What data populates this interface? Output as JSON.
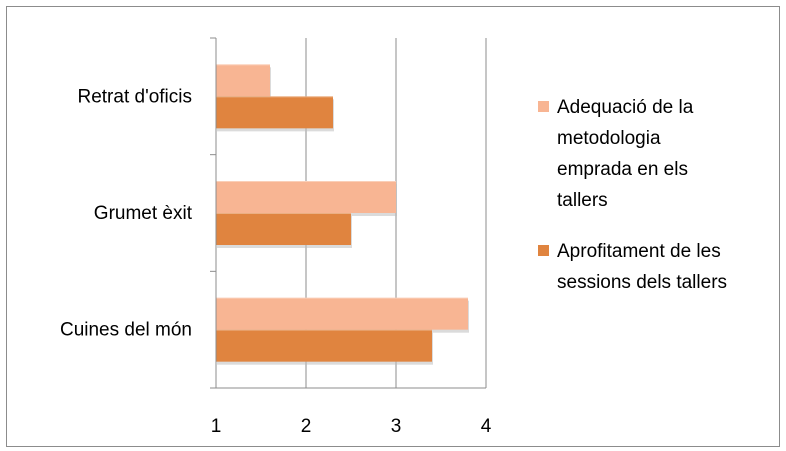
{
  "chart_data": {
    "type": "bar",
    "orientation": "horizontal",
    "categories": [
      "Retrat d'oficis",
      "Grumet èxit",
      "Cuines del món"
    ],
    "series": [
      {
        "name": "Adequació de la metodologia emprada en els tallers",
        "name_lines": [
          "Adequació de la",
          "metodologia",
          "emprada en els",
          "tallers"
        ],
        "values": [
          1.6,
          3.0,
          3.8
        ],
        "color": "#F8B593"
      },
      {
        "name": "Aprofitament de les sessions dels tallers",
        "name_lines": [
          "Aprofitament de les",
          "sessions dels tallers"
        ],
        "values": [
          2.3,
          2.5,
          3.4
        ],
        "color": "#E0843F"
      }
    ],
    "xlim": [
      1,
      4
    ],
    "xticks": [
      "1",
      "2",
      "3",
      "4"
    ],
    "grid": true,
    "legend": "right",
    "title": "",
    "xlabel": "",
    "ylabel": ""
  }
}
